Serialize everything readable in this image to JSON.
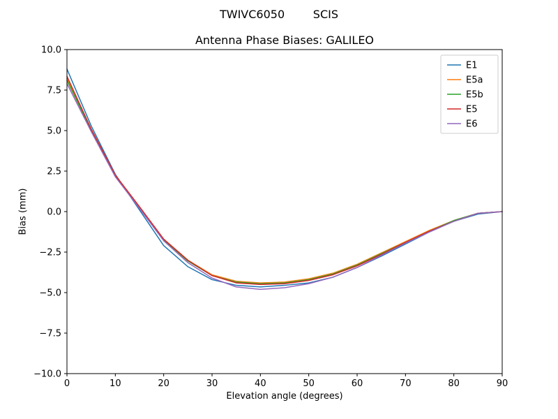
{
  "figure": {
    "suptitle": "TWIVC6050        SCIS"
  },
  "chart_data": {
    "type": "line",
    "suptitle": "TWIVC6050        SCIS",
    "title": "Antenna Phase Biases: GALILEO",
    "xlabel": "Elevation angle (degrees)",
    "ylabel": "Bias (mm)",
    "xlim": [
      0,
      90
    ],
    "ylim": [
      -10,
      10
    ],
    "xticks": [
      0,
      10,
      20,
      30,
      40,
      50,
      60,
      70,
      80,
      90
    ],
    "yticks": [
      10.0,
      7.5,
      5.0,
      2.5,
      0.0,
      -2.5,
      -5.0,
      -7.5,
      -10.0
    ],
    "ytick_labels": [
      "10.0",
      "7.5",
      "5.0",
      "2.5",
      "0.0",
      "−2.5",
      "−5.0",
      "−7.5",
      "−10.0"
    ],
    "grid": false,
    "legend_position": "upper right",
    "x": [
      0,
      5,
      10,
      15,
      20,
      25,
      30,
      35,
      40,
      45,
      50,
      55,
      60,
      65,
      70,
      75,
      80,
      85,
      90
    ],
    "series": [
      {
        "name": "E1",
        "color": "#1f77b4",
        "values": [
          8.8,
          5.3,
          2.3,
          0.1,
          -2.1,
          -3.4,
          -4.2,
          -4.55,
          -4.65,
          -4.55,
          -4.4,
          -4.05,
          -3.45,
          -2.75,
          -2.0,
          -1.25,
          -0.6,
          -0.15,
          0.0
        ]
      },
      {
        "name": "E5a",
        "color": "#ff7f0e",
        "values": [
          8.2,
          5.1,
          2.25,
          0.3,
          -1.7,
          -3.0,
          -3.9,
          -4.3,
          -4.4,
          -4.35,
          -4.15,
          -3.8,
          -3.25,
          -2.55,
          -1.85,
          -1.15,
          -0.55,
          -0.1,
          0.0
        ]
      },
      {
        "name": "E5b",
        "color": "#2ca02c",
        "values": [
          8.1,
          5.05,
          2.2,
          0.25,
          -1.75,
          -3.05,
          -3.95,
          -4.35,
          -4.45,
          -4.4,
          -4.2,
          -3.85,
          -3.3,
          -2.6,
          -1.9,
          -1.2,
          -0.55,
          -0.1,
          0.0
        ]
      },
      {
        "name": "E5",
        "color": "#d62728",
        "values": [
          8.35,
          5.1,
          2.25,
          0.3,
          -1.7,
          -3.0,
          -3.95,
          -4.4,
          -4.5,
          -4.45,
          -4.25,
          -3.9,
          -3.35,
          -2.65,
          -1.9,
          -1.2,
          -0.6,
          -0.1,
          0.0
        ]
      },
      {
        "name": "E6",
        "color": "#9467bd",
        "values": [
          7.9,
          4.95,
          2.15,
          0.2,
          -1.8,
          -3.15,
          -4.1,
          -4.65,
          -4.8,
          -4.7,
          -4.45,
          -4.05,
          -3.45,
          -2.7,
          -1.95,
          -1.25,
          -0.6,
          -0.1,
          0.0
        ]
      }
    ]
  }
}
